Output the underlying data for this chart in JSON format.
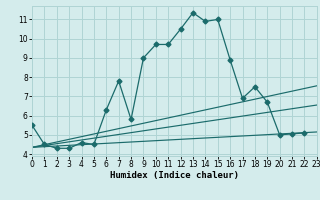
{
  "xlabel": "Humidex (Indice chaleur)",
  "x_ticks": [
    0,
    1,
    2,
    3,
    4,
    5,
    6,
    7,
    8,
    9,
    10,
    11,
    12,
    13,
    14,
    15,
    16,
    17,
    18,
    19,
    20,
    21,
    22,
    23
  ],
  "y_ticks": [
    4,
    5,
    6,
    7,
    8,
    9,
    10,
    11
  ],
  "xlim": [
    0,
    23
  ],
  "ylim": [
    3.9,
    11.7
  ],
  "bg_color": "#d4ecec",
  "grid_color": "#afd4d4",
  "line_color": "#1b6b6b",
  "main_x": [
    0,
    1,
    2,
    3,
    4,
    5,
    6,
    7,
    8,
    9,
    10,
    11,
    12,
    13,
    14,
    15,
    16,
    17,
    18,
    19,
    20,
    21,
    22
  ],
  "main_y": [
    5.5,
    4.5,
    4.3,
    4.3,
    4.6,
    4.5,
    6.3,
    7.8,
    5.8,
    9.0,
    9.7,
    9.7,
    10.5,
    11.35,
    10.9,
    11.0,
    8.9,
    6.9,
    7.5,
    6.7,
    5.0,
    5.05,
    5.1
  ],
  "trend1_x": [
    0,
    23
  ],
  "trend1_y": [
    4.35,
    5.15
  ],
  "trend2_x": [
    0,
    23
  ],
  "trend2_y": [
    4.35,
    6.55
  ],
  "trend3_x": [
    0,
    23
  ],
  "trend3_y": [
    4.35,
    7.55
  ],
  "marker_size": 2.5,
  "lw_main": 0.9,
  "lw_trend": 0.85
}
